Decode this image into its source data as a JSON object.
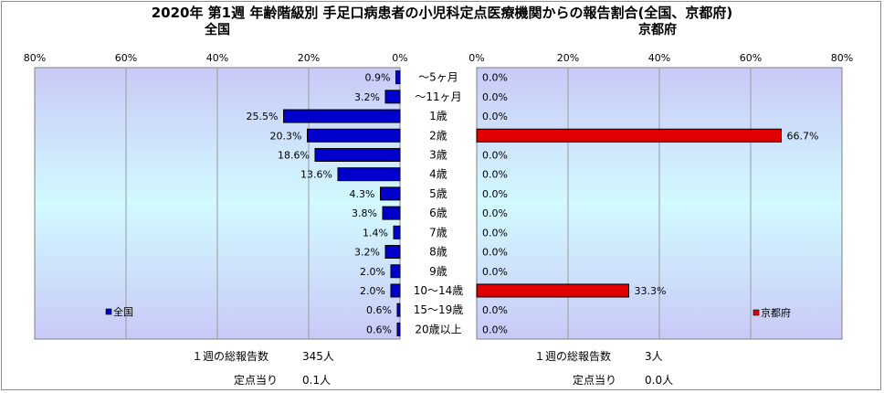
{
  "chart_data": {
    "type": "bar",
    "title": "2020年 第1週 年齢階級別 手足口病患者の小児科定点医療機関からの報告割合(全国、京都府)",
    "categories": [
      "～5ヶ月",
      "～11ヶ月",
      "1歳",
      "2歳",
      "3歳",
      "4歳",
      "5歳",
      "6歳",
      "7歳",
      "8歳",
      "9歳",
      "10～14歳",
      "15～19歳",
      "20歳以上"
    ],
    "panels": [
      {
        "subtitle": "全国",
        "legend": "全国",
        "legend_position": "bottom-left",
        "bar_color": "#0000cc",
        "direction": "left",
        "ticks": [
          "80%",
          "60%",
          "40%",
          "20%",
          "0%"
        ],
        "xlim": [
          0,
          80
        ],
        "values": [
          0.9,
          3.2,
          25.5,
          20.3,
          18.6,
          13.6,
          4.3,
          3.8,
          1.4,
          3.2,
          2.0,
          2.0,
          0.6,
          0.6
        ],
        "value_labels": [
          "0.9%",
          "3.2%",
          "25.5%",
          "20.3%",
          "18.6%",
          "13.6%",
          "4.3%",
          "3.8%",
          "1.4%",
          "3.2%",
          "2.0%",
          "2.0%",
          "0.6%",
          "0.6%"
        ]
      },
      {
        "subtitle": "京都府",
        "legend": "京都府",
        "legend_position": "bottom-right",
        "bar_color": "#e00000",
        "direction": "right",
        "ticks": [
          "0%",
          "20%",
          "40%",
          "60%",
          "80%"
        ],
        "xlim": [
          0,
          80
        ],
        "values": [
          0,
          0,
          0,
          66.7,
          0,
          0,
          0,
          0,
          0,
          0,
          0,
          33.3,
          0,
          0
        ],
        "value_labels": [
          "0.0%",
          "0.0%",
          "0.0%",
          "66.7%",
          "0.0%",
          "0.0%",
          "0.0%",
          "0.0%",
          "0.0%",
          "0.0%",
          "0.0%",
          "33.3%",
          "0.0%",
          "0.0%"
        ]
      }
    ]
  },
  "footer": {
    "left": {
      "total_label": "１週の総報告数",
      "total_value": "345人",
      "per_site_label": "定点当り",
      "per_site_value": "0.1人"
    },
    "right": {
      "total_label": "１週の総報告数",
      "total_value": "3人",
      "per_site_label": "定点当り",
      "per_site_value": "0.0人"
    }
  }
}
